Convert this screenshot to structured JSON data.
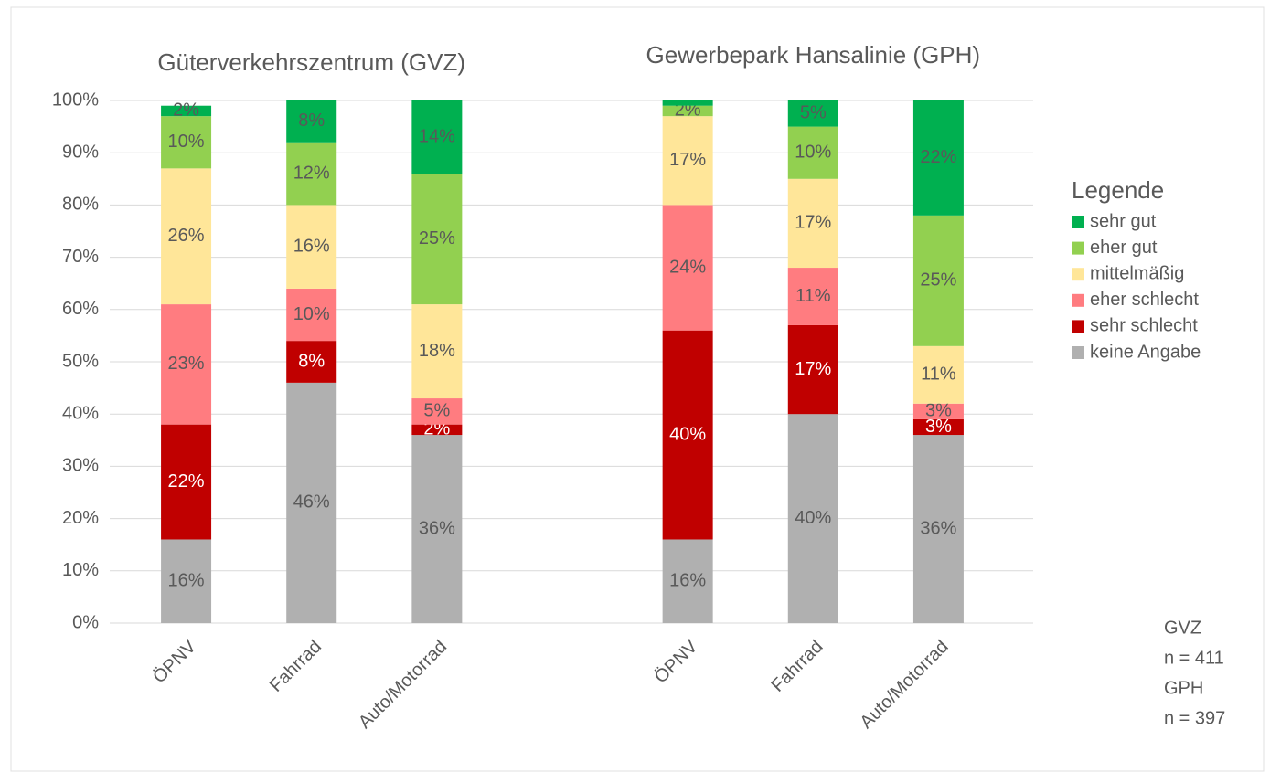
{
  "chart_data": {
    "type": "stacked_bar",
    "group_titles": [
      "Güterverkehrszentrum (GVZ)",
      "Gewerbepark Hansalinie (GPH)"
    ],
    "categories": [
      "ÖPNV",
      "Fahrrad",
      "Auto/Motorrad",
      null,
      "ÖPNV",
      "Fahrrad",
      "Auto/Motorrad"
    ],
    "series": [
      {
        "name": "keine Angabe",
        "color": "#b0b0b0",
        "values": [
          16,
          46,
          36,
          null,
          16,
          40,
          36
        ],
        "value_labels": [
          "16%",
          "46%",
          "36%",
          null,
          "16%",
          "40%",
          "36%"
        ]
      },
      {
        "name": "sehr schlecht",
        "color": "#c00000",
        "values": [
          22,
          8,
          2,
          null,
          40,
          17,
          3
        ],
        "value_labels": [
          "22%",
          "8%",
          "2%",
          null,
          "40%",
          "17%",
          "3%"
        ]
      },
      {
        "name": "eher schlecht",
        "color": "#ff7c80",
        "values": [
          23,
          10,
          5,
          null,
          24,
          11,
          3
        ],
        "value_labels": [
          "23%",
          "10%",
          "5%",
          null,
          "24%",
          "11%",
          "3%"
        ]
      },
      {
        "name": "mittelmäßig",
        "color": "#ffe699",
        "values": [
          26,
          16,
          18,
          null,
          17,
          17,
          11
        ],
        "value_labels": [
          "26%",
          "16%",
          "18%",
          null,
          "17%",
          "17%",
          "11%"
        ]
      },
      {
        "name": "eher gut",
        "color": "#92d050",
        "values": [
          10,
          12,
          25,
          null,
          2,
          10,
          25
        ],
        "value_labels": [
          "10%",
          "12%",
          "25%",
          null,
          "2%",
          "10%",
          "25%"
        ]
      },
      {
        "name": "sehr gut",
        "color": "#00b050",
        "values": [
          2,
          8,
          14,
          null,
          1,
          5,
          22
        ],
        "value_labels": [
          "2%",
          "8%",
          "14%",
          null,
          null,
          "5%",
          "22%"
        ]
      }
    ],
    "ylim": [
      0,
      100
    ],
    "yticks": [
      {
        "value": 0,
        "label": "0%"
      },
      {
        "value": 10,
        "label": "10%"
      },
      {
        "value": 20,
        "label": "20%"
      },
      {
        "value": 30,
        "label": "30%"
      },
      {
        "value": 40,
        "label": "40%"
      },
      {
        "value": 50,
        "label": "50%"
      },
      {
        "value": 60,
        "label": "60%"
      },
      {
        "value": 70,
        "label": "70%"
      },
      {
        "value": 80,
        "label": "80%"
      },
      {
        "value": 90,
        "label": "90%"
      },
      {
        "value": 100,
        "label": "100%"
      }
    ],
    "grid": true,
    "legend_title": "Legende",
    "legend_position": "right",
    "annotations": [
      "GVZ",
      "n = 411",
      "GPH",
      "n = 397"
    ]
  }
}
